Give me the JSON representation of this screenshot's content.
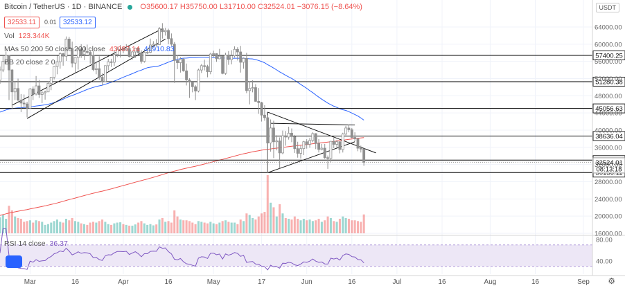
{
  "header": {
    "symbol": "Bitcoin / TetherUS · 1D · BINANCE",
    "open": "O35600.17",
    "high": "H35750.00",
    "low": "L31710.00",
    "close": "C32524.01",
    "change": "−3076.15 (−8.64%)"
  },
  "trade": {
    "sell": "32533.11",
    "spread": "0.01",
    "buy": "32533.12"
  },
  "indicators": {
    "vol_label": "Vol",
    "vol_value": "123.344K",
    "ma_label": "MAs 50 200 50 close 200 close",
    "ma50_value": "43087.14",
    "ma200_value": "41910.83",
    "bb_label": "BB 20 close 2 0",
    "rsi_label": "RSI 14 close",
    "rsi_value": "36.37"
  },
  "currency": "USDT",
  "colors": {
    "up": "#26a69a",
    "down": "#ef5350",
    "candle": "#8f8f8f",
    "ma50": "#2962ff",
    "ma200": "#ef5350",
    "rsi": "#7e57c2",
    "rsi_band": "#ede7f6",
    "level": "#000000"
  },
  "chart_data": {
    "type": "candlestick",
    "y_ticks": [
      16000,
      20000,
      24000,
      28000,
      32000,
      36000,
      40000,
      44000,
      48000,
      52000,
      56000,
      60000,
      64000
    ],
    "y_tick_labels": [
      "16000.00",
      "20000.00",
      "24000.00",
      "28000.00",
      "32000.00",
      "36000.00",
      "40000.00",
      "44000.00",
      "48000.00",
      "52000.00",
      "56000.00",
      "60000.00",
      "64000.00"
    ],
    "x_labels": [
      "Mar",
      "16",
      "Apr",
      "16",
      "May",
      "17",
      "Jun",
      "16",
      "Jul",
      "16",
      "Aug",
      "16",
      "Sep"
    ],
    "x_label_dates": [
      "2021-03-01",
      "2021-03-16",
      "2021-04-01",
      "2021-04-16",
      "2021-05-01",
      "2021-05-17",
      "2021-06-01",
      "2021-06-16",
      "2021-07-01",
      "2021-07-16",
      "2021-08-01",
      "2021-08-16",
      "2021-09-01"
    ],
    "date_range": [
      "2021-02-19",
      "2021-09-04"
    ],
    "horizontal_levels": [
      {
        "value": 57400.25,
        "label": "57400.25"
      },
      {
        "value": 51280.38,
        "label": "51280.38"
      },
      {
        "value": 45056.63,
        "label": "45056.63"
      },
      {
        "value": 38636.04,
        "label": "38636.04"
      },
      {
        "value": 33028.72,
        "label": "33028.72"
      },
      {
        "value": 30136.11,
        "label": "30136.11"
      }
    ],
    "last_price": {
      "value": 32524.01,
      "label": "32524.01",
      "countdown": "08:13:18"
    },
    "candles": [
      {
        "d": "2021-02-19",
        "o": 51600,
        "h": 54800,
        "l": 50800,
        "c": 54000
      },
      {
        "d": "2021-02-20",
        "o": 54000,
        "h": 57400,
        "l": 53500,
        "c": 56000
      },
      {
        "d": "2021-02-21",
        "o": 56000,
        "h": 58300,
        "l": 55500,
        "c": 57400
      },
      {
        "d": "2021-02-22",
        "o": 57400,
        "h": 57500,
        "l": 47000,
        "c": 54000
      },
      {
        "d": "2021-02-23",
        "o": 54000,
        "h": 54200,
        "l": 45000,
        "c": 48900
      },
      {
        "d": "2021-02-24",
        "o": 48900,
        "h": 51300,
        "l": 47000,
        "c": 49700
      },
      {
        "d": "2021-02-25",
        "o": 49700,
        "h": 52000,
        "l": 46700,
        "c": 47000
      },
      {
        "d": "2021-02-26",
        "o": 47000,
        "h": 48400,
        "l": 44200,
        "c": 46300
      },
      {
        "d": "2021-02-27",
        "o": 46300,
        "h": 48300,
        "l": 45100,
        "c": 46100
      },
      {
        "d": "2021-02-28",
        "o": 46100,
        "h": 46600,
        "l": 43000,
        "c": 45100
      },
      {
        "d": "2021-03-01",
        "o": 45100,
        "h": 49800,
        "l": 45000,
        "c": 49600
      },
      {
        "d": "2021-03-02",
        "o": 49600,
        "h": 50200,
        "l": 47000,
        "c": 48400
      },
      {
        "d": "2021-03-03",
        "o": 48400,
        "h": 52600,
        "l": 48100,
        "c": 50300
      },
      {
        "d": "2021-03-04",
        "o": 50300,
        "h": 51700,
        "l": 47500,
        "c": 48300
      },
      {
        "d": "2021-03-05",
        "o": 48300,
        "h": 49400,
        "l": 46300,
        "c": 48700
      },
      {
        "d": "2021-03-06",
        "o": 48700,
        "h": 49200,
        "l": 47100,
        "c": 48900
      },
      {
        "d": "2021-03-07",
        "o": 48900,
        "h": 51400,
        "l": 48900,
        "c": 50900
      },
      {
        "d": "2021-03-08",
        "o": 50900,
        "h": 52400,
        "l": 49300,
        "c": 52300
      },
      {
        "d": "2021-03-09",
        "o": 52300,
        "h": 54900,
        "l": 51800,
        "c": 54800
      },
      {
        "d": "2021-03-10",
        "o": 54800,
        "h": 57300,
        "l": 53000,
        "c": 55900
      },
      {
        "d": "2021-03-11",
        "o": 55900,
        "h": 58100,
        "l": 54300,
        "c": 57800
      },
      {
        "d": "2021-03-12",
        "o": 57800,
        "h": 58000,
        "l": 55000,
        "c": 57200
      },
      {
        "d": "2021-03-13",
        "o": 57200,
        "h": 61800,
        "l": 56100,
        "c": 61200
      },
      {
        "d": "2021-03-14",
        "o": 61200,
        "h": 61700,
        "l": 59000,
        "c": 59000
      },
      {
        "d": "2021-03-15",
        "o": 59000,
        "h": 60600,
        "l": 54600,
        "c": 55600
      },
      {
        "d": "2021-03-16",
        "o": 55600,
        "h": 56900,
        "l": 53300,
        "c": 56900
      },
      {
        "d": "2021-03-17",
        "o": 56900,
        "h": 58900,
        "l": 54100,
        "c": 58900
      },
      {
        "d": "2021-03-18",
        "o": 58900,
        "h": 60000,
        "l": 56800,
        "c": 57600
      },
      {
        "d": "2021-03-19",
        "o": 57600,
        "h": 59400,
        "l": 56300,
        "c": 58300
      },
      {
        "d": "2021-03-20",
        "o": 58300,
        "h": 59900,
        "l": 57800,
        "c": 58100
      },
      {
        "d": "2021-03-21",
        "o": 58100,
        "h": 58600,
        "l": 55500,
        "c": 57400
      },
      {
        "d": "2021-03-22",
        "o": 57400,
        "h": 58400,
        "l": 53700,
        "c": 54100
      },
      {
        "d": "2021-03-23",
        "o": 54100,
        "h": 55800,
        "l": 53000,
        "c": 54300
      },
      {
        "d": "2021-03-24",
        "o": 54300,
        "h": 57200,
        "l": 51700,
        "c": 52300
      },
      {
        "d": "2021-03-25",
        "o": 52300,
        "h": 53200,
        "l": 50400,
        "c": 51300
      },
      {
        "d": "2021-03-26",
        "o": 51300,
        "h": 55100,
        "l": 51200,
        "c": 55000
      },
      {
        "d": "2021-03-27",
        "o": 55000,
        "h": 56600,
        "l": 53900,
        "c": 55900
      },
      {
        "d": "2021-03-28",
        "o": 55900,
        "h": 56600,
        "l": 54700,
        "c": 55800
      },
      {
        "d": "2021-03-29",
        "o": 55800,
        "h": 58400,
        "l": 54900,
        "c": 57600
      },
      {
        "d": "2021-03-30",
        "o": 57600,
        "h": 59400,
        "l": 57000,
        "c": 58800
      },
      {
        "d": "2021-03-31",
        "o": 58800,
        "h": 59800,
        "l": 56900,
        "c": 58800
      },
      {
        "d": "2021-04-01",
        "o": 58800,
        "h": 59500,
        "l": 57900,
        "c": 58700
      },
      {
        "d": "2021-04-02",
        "o": 58700,
        "h": 60000,
        "l": 58400,
        "c": 59000
      },
      {
        "d": "2021-04-03",
        "o": 59000,
        "h": 59800,
        "l": 56900,
        "c": 57100
      },
      {
        "d": "2021-04-04",
        "o": 57100,
        "h": 58500,
        "l": 56400,
        "c": 58200
      },
      {
        "d": "2021-04-05",
        "o": 58200,
        "h": 59200,
        "l": 56800,
        "c": 59100
      },
      {
        "d": "2021-04-06",
        "o": 59100,
        "h": 59500,
        "l": 57600,
        "c": 58000
      },
      {
        "d": "2021-04-07",
        "o": 58000,
        "h": 58600,
        "l": 55500,
        "c": 56000
      },
      {
        "d": "2021-04-08",
        "o": 56000,
        "h": 58200,
        "l": 55700,
        "c": 58100
      },
      {
        "d": "2021-04-09",
        "o": 58100,
        "h": 58900,
        "l": 57700,
        "c": 58100
      },
      {
        "d": "2021-04-10",
        "o": 58100,
        "h": 61300,
        "l": 57900,
        "c": 59800
      },
      {
        "d": "2021-04-11",
        "o": 59800,
        "h": 60700,
        "l": 59200,
        "c": 60000
      },
      {
        "d": "2021-04-12",
        "o": 60000,
        "h": 61200,
        "l": 59400,
        "c": 59900
      },
      {
        "d": "2021-04-13",
        "o": 59900,
        "h": 64000,
        "l": 59800,
        "c": 63600
      },
      {
        "d": "2021-04-14",
        "o": 63600,
        "h": 64900,
        "l": 61300,
        "c": 62900
      },
      {
        "d": "2021-04-15",
        "o": 62900,
        "h": 63800,
        "l": 62000,
        "c": 63200
      },
      {
        "d": "2021-04-16",
        "o": 63200,
        "h": 63600,
        "l": 60000,
        "c": 61300
      },
      {
        "d": "2021-04-17",
        "o": 61300,
        "h": 62500,
        "l": 59600,
        "c": 60000
      },
      {
        "d": "2021-04-18",
        "o": 60000,
        "h": 60500,
        "l": 51000,
        "c": 56200
      },
      {
        "d": "2021-04-19",
        "o": 56200,
        "h": 57500,
        "l": 54200,
        "c": 55700
      },
      {
        "d": "2021-04-20",
        "o": 55700,
        "h": 57000,
        "l": 53400,
        "c": 56500
      },
      {
        "d": "2021-04-21",
        "o": 56500,
        "h": 56800,
        "l": 53600,
        "c": 53800
      },
      {
        "d": "2021-04-22",
        "o": 53800,
        "h": 55500,
        "l": 50400,
        "c": 51700
      },
      {
        "d": "2021-04-23",
        "o": 51700,
        "h": 52100,
        "l": 47500,
        "c": 51200
      },
      {
        "d": "2021-04-24",
        "o": 51200,
        "h": 51200,
        "l": 48800,
        "c": 50100
      },
      {
        "d": "2021-04-25",
        "o": 50100,
        "h": 50500,
        "l": 47000,
        "c": 49100
      },
      {
        "d": "2021-04-26",
        "o": 49100,
        "h": 54300,
        "l": 48800,
        "c": 54000
      },
      {
        "d": "2021-04-27",
        "o": 54000,
        "h": 55400,
        "l": 53300,
        "c": 55000
      },
      {
        "d": "2021-04-28",
        "o": 55000,
        "h": 56400,
        "l": 53900,
        "c": 54800
      },
      {
        "d": "2021-04-29",
        "o": 54800,
        "h": 55200,
        "l": 52300,
        "c": 53600
      },
      {
        "d": "2021-04-30",
        "o": 53600,
        "h": 58000,
        "l": 53000,
        "c": 57700
      },
      {
        "d": "2021-05-01",
        "o": 57700,
        "h": 58500,
        "l": 57000,
        "c": 57800
      },
      {
        "d": "2021-05-02",
        "o": 57800,
        "h": 57900,
        "l": 55900,
        "c": 56600
      },
      {
        "d": "2021-05-03",
        "o": 56600,
        "h": 58900,
        "l": 56500,
        "c": 57200
      },
      {
        "d": "2021-05-04",
        "o": 57200,
        "h": 57200,
        "l": 53000,
        "c": 53200
      },
      {
        "d": "2021-05-05",
        "o": 53200,
        "h": 58000,
        "l": 52900,
        "c": 57500
      },
      {
        "d": "2021-05-06",
        "o": 57500,
        "h": 58400,
        "l": 55200,
        "c": 56400
      },
      {
        "d": "2021-05-07",
        "o": 56400,
        "h": 58600,
        "l": 55300,
        "c": 57300
      },
      {
        "d": "2021-05-08",
        "o": 57300,
        "h": 59500,
        "l": 56900,
        "c": 58800
      },
      {
        "d": "2021-05-09",
        "o": 58800,
        "h": 59300,
        "l": 56200,
        "c": 58200
      },
      {
        "d": "2021-05-10",
        "o": 58200,
        "h": 59600,
        "l": 53400,
        "c": 55800
      },
      {
        "d": "2021-05-11",
        "o": 55800,
        "h": 56900,
        "l": 54300,
        "c": 56700
      },
      {
        "d": "2021-05-12",
        "o": 56700,
        "h": 58000,
        "l": 48600,
        "c": 49200
      },
      {
        "d": "2021-05-13",
        "o": 49200,
        "h": 51400,
        "l": 46000,
        "c": 49700
      },
      {
        "d": "2021-05-14",
        "o": 49700,
        "h": 51600,
        "l": 48800,
        "c": 49900
      },
      {
        "d": "2021-05-15",
        "o": 49900,
        "h": 50700,
        "l": 46600,
        "c": 46700
      },
      {
        "d": "2021-05-16",
        "o": 46700,
        "h": 49800,
        "l": 43800,
        "c": 46400
      },
      {
        "d": "2021-05-17",
        "o": 46400,
        "h": 46600,
        "l": 42000,
        "c": 43500
      },
      {
        "d": "2021-05-18",
        "o": 43500,
        "h": 45800,
        "l": 42200,
        "c": 42900
      },
      {
        "d": "2021-05-19",
        "o": 42900,
        "h": 43500,
        "l": 30000,
        "c": 37000
      },
      {
        "d": "2021-05-20",
        "o": 37000,
        "h": 42500,
        "l": 35000,
        "c": 40500
      },
      {
        "d": "2021-05-21",
        "o": 40500,
        "h": 42200,
        "l": 33500,
        "c": 37300
      },
      {
        "d": "2021-05-22",
        "o": 37300,
        "h": 38800,
        "l": 35300,
        "c": 37500
      },
      {
        "d": "2021-05-23",
        "o": 37500,
        "h": 38300,
        "l": 31100,
        "c": 34700
      },
      {
        "d": "2021-05-24",
        "o": 34700,
        "h": 39900,
        "l": 34400,
        "c": 38700
      },
      {
        "d": "2021-05-25",
        "o": 38700,
        "h": 39800,
        "l": 36400,
        "c": 38400
      },
      {
        "d": "2021-05-26",
        "o": 38400,
        "h": 40800,
        "l": 37800,
        "c": 39300
      },
      {
        "d": "2021-05-27",
        "o": 39300,
        "h": 40400,
        "l": 37200,
        "c": 38500
      },
      {
        "d": "2021-05-28",
        "o": 38500,
        "h": 38900,
        "l": 34700,
        "c": 35700
      },
      {
        "d": "2021-05-29",
        "o": 35700,
        "h": 37300,
        "l": 33600,
        "c": 34600
      },
      {
        "d": "2021-05-30",
        "o": 34600,
        "h": 36400,
        "l": 33400,
        "c": 35700
      },
      {
        "d": "2021-05-31",
        "o": 35700,
        "h": 37500,
        "l": 34200,
        "c": 37300
      },
      {
        "d": "2021-06-01",
        "o": 37300,
        "h": 37900,
        "l": 35700,
        "c": 36700
      },
      {
        "d": "2021-06-02",
        "o": 36700,
        "h": 38200,
        "l": 35900,
        "c": 37600
      },
      {
        "d": "2021-06-03",
        "o": 37600,
        "h": 39500,
        "l": 37200,
        "c": 39200
      },
      {
        "d": "2021-06-04",
        "o": 39200,
        "h": 39300,
        "l": 35600,
        "c": 36900
      },
      {
        "d": "2021-06-05",
        "o": 36900,
        "h": 37900,
        "l": 34800,
        "c": 35500
      },
      {
        "d": "2021-06-06",
        "o": 35500,
        "h": 36800,
        "l": 35300,
        "c": 35800
      },
      {
        "d": "2021-06-07",
        "o": 35800,
        "h": 36800,
        "l": 33300,
        "c": 33600
      },
      {
        "d": "2021-06-08",
        "o": 33600,
        "h": 34100,
        "l": 31000,
        "c": 33400
      },
      {
        "d": "2021-06-09",
        "o": 33400,
        "h": 37500,
        "l": 32400,
        "c": 37400
      },
      {
        "d": "2021-06-10",
        "o": 37400,
        "h": 38400,
        "l": 35800,
        "c": 36700
      },
      {
        "d": "2021-06-11",
        "o": 36700,
        "h": 37700,
        "l": 35900,
        "c": 37300
      },
      {
        "d": "2021-06-12",
        "o": 37300,
        "h": 37400,
        "l": 34600,
        "c": 35500
      },
      {
        "d": "2021-06-13",
        "o": 35500,
        "h": 39400,
        "l": 34800,
        "c": 39100
      },
      {
        "d": "2021-06-14",
        "o": 39100,
        "h": 41000,
        "l": 38800,
        "c": 40500
      },
      {
        "d": "2021-06-15",
        "o": 40500,
        "h": 41300,
        "l": 39500,
        "c": 40100
      },
      {
        "d": "2021-06-16",
        "o": 40100,
        "h": 40500,
        "l": 38100,
        "c": 38300
      },
      {
        "d": "2021-06-17",
        "o": 38300,
        "h": 39500,
        "l": 37400,
        "c": 38000
      },
      {
        "d": "2021-06-18",
        "o": 38000,
        "h": 38200,
        "l": 35100,
        "c": 35800
      },
      {
        "d": "2021-06-19",
        "o": 35800,
        "h": 36400,
        "l": 34800,
        "c": 35600
      },
      {
        "d": "2021-06-20",
        "o": 35600,
        "h": 35750,
        "l": 31710,
        "c": 32524.01
      }
    ],
    "volume": [
      105,
      120,
      95,
      180,
      150,
      110,
      100,
      95,
      75,
      80,
      85,
      70,
      85,
      80,
      75,
      55,
      60,
      70,
      80,
      90,
      75,
      70,
      95,
      85,
      100,
      80,
      75,
      65,
      60,
      55,
      70,
      75,
      70,
      80,
      90,
      75,
      60,
      55,
      65,
      70,
      72,
      60,
      55,
      50,
      50,
      58,
      70,
      80,
      65,
      55,
      60,
      52,
      58,
      90,
      100,
      75,
      80,
      70,
      150,
      110,
      90,
      85,
      85,
      80,
      70,
      60,
      80,
      75,
      70,
      65,
      75,
      65,
      60,
      70,
      80,
      85,
      75,
      70,
      70,
      60,
      90,
      80,
      130,
      120,
      100,
      90,
      110,
      130,
      140,
      380,
      200,
      170,
      110,
      190,
      130,
      100,
      95,
      90,
      110,
      95,
      85,
      95,
      85,
      90,
      80,
      85,
      95,
      75,
      85,
      110,
      100,
      80,
      75,
      95,
      110,
      100,
      95,
      85,
      85,
      80,
      75,
      123.344
    ],
    "volume_unit": "K",
    "rsi": {
      "y_ticks": [
        40,
        80
      ],
      "y_tick_labels": [
        "40.00",
        "80.00"
      ],
      "band": [
        30,
        70
      ],
      "last": 36.37
    }
  }
}
